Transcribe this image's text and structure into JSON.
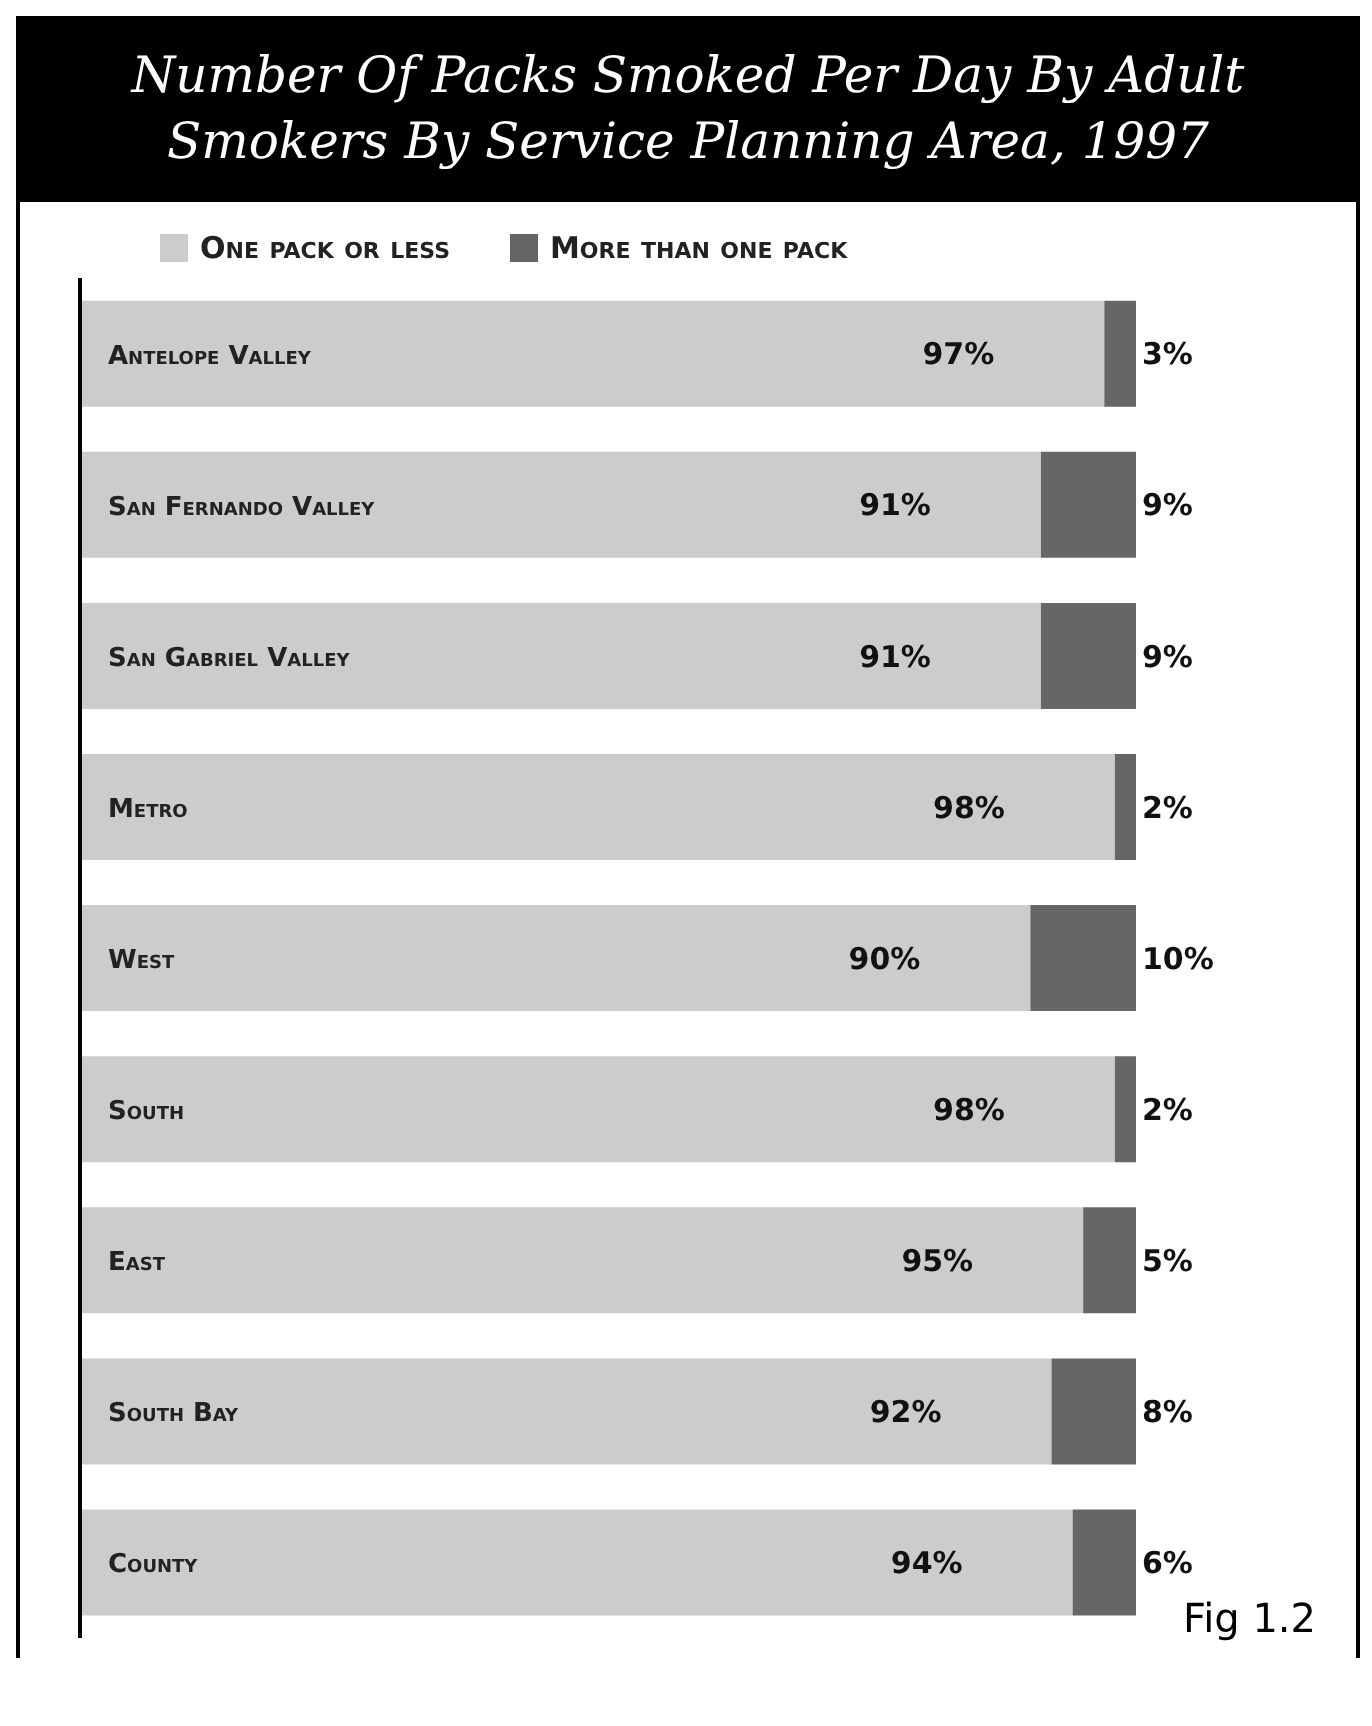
{
  "chart_data": {
    "type": "bar",
    "orientation": "horizontal",
    "stacked": true,
    "title": "Number Of Packs Smoked Per Day By Adult Smokers By Service Planning Area, 1997",
    "categories": [
      "Antelope Valley",
      "San Fernando Valley",
      "San Gabriel Valley",
      "Metro",
      "West",
      "South",
      "East",
      "South Bay",
      "County"
    ],
    "series": [
      {
        "name": "One pack or less",
        "color": "#cccccc",
        "values": [
          97,
          91,
          91,
          98,
          90,
          98,
          95,
          92,
          94
        ],
        "value_labels": [
          "97%",
          "91%",
          "91%",
          "98%",
          "90%",
          "98%",
          "95%",
          "92%",
          "94%"
        ]
      },
      {
        "name": "More than one pack",
        "color": "#666666",
        "values": [
          3,
          9,
          9,
          2,
          10,
          2,
          5,
          8,
          6
        ],
        "value_labels": [
          "3%",
          "9%",
          "9%",
          "2%",
          "10%",
          "2%",
          "5%",
          "8%",
          "6%"
        ]
      }
    ],
    "legend": "top",
    "annotations": [
      "Fig 1.2"
    ]
  }
}
